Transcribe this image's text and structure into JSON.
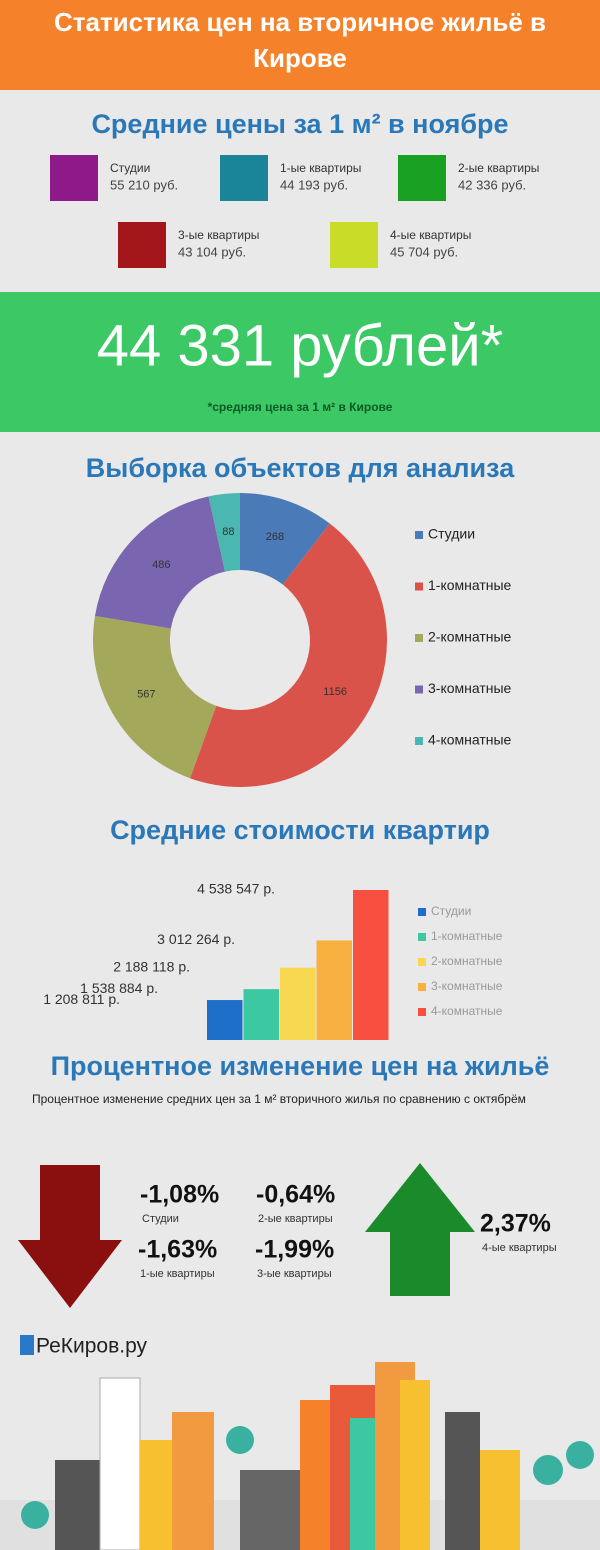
{
  "header": {
    "title": "Статистика цен на вторичное жильё в Кирове"
  },
  "prices": {
    "title": "Средние цены за 1 м² в ноябре",
    "items": [
      {
        "name": "Студии",
        "value": "55 210 руб.",
        "color": "#8e1a8a"
      },
      {
        "name": "1-ые квартиры",
        "value": "44 193 руб.",
        "color": "#1a8499"
      },
      {
        "name": "2-ые квартиры",
        "value": "42 336 руб.",
        "color": "#18a020"
      },
      {
        "name": "3-ые квартиры",
        "value": "43 104 руб.",
        "color": "#a3161a"
      },
      {
        "name": "4-ые квартиры",
        "value": "45 704 руб.",
        "color": "#c8dc28"
      }
    ]
  },
  "average": {
    "value": "44 331 рублей*",
    "note": "*средняя цена за 1 м² в Кирове"
  },
  "chart_data": [
    {
      "type": "pie",
      "title": "Выборка объектов для анализа",
      "donut": true,
      "legend": "right",
      "categories": [
        "Студии",
        "1-комнатные",
        "2-комнатные",
        "3-комнатные",
        "4-комнатные"
      ],
      "values": [
        268,
        1156,
        567,
        486,
        88
      ],
      "colors": [
        "#4a7ab8",
        "#d9534a",
        "#a3a85a",
        "#7a66b0",
        "#4ab8b0"
      ]
    },
    {
      "type": "bar",
      "title": "Средние стоимости квартир",
      "legend": "right",
      "categories": [
        "Студии",
        "1-комнатные",
        "2-комнатные",
        "3-комнатные",
        "4-комнатные"
      ],
      "values": [
        1208811,
        1538884,
        2188118,
        3012264,
        4538547
      ],
      "value_labels": [
        "1 208 811 р.",
        "1 538 884 р.",
        "2 188 118 р.",
        "3 012 264 р.",
        "4 538 547 р."
      ],
      "colors": [
        "#1e6fc8",
        "#3cc8a0",
        "#f8d850",
        "#f8b040",
        "#f85040"
      ]
    }
  ],
  "changes": {
    "title": "Процентное изменение цен на жильё",
    "subtitle": "Процентное изменение средних цен за 1 м² вторичного жилья по сравнению с октябрём",
    "items": [
      {
        "value": "-1,08%",
        "label": "Студии"
      },
      {
        "value": "-0,64%",
        "label": "2-ые квартиры"
      },
      {
        "value": "-1,63%",
        "label": "1-ые квартиры"
      },
      {
        "value": "-1,99%",
        "label": "3-ые квартиры"
      },
      {
        "value": "2,37%",
        "label": "4-ые квартиры"
      }
    ]
  },
  "logo": "РеКиров.ру"
}
